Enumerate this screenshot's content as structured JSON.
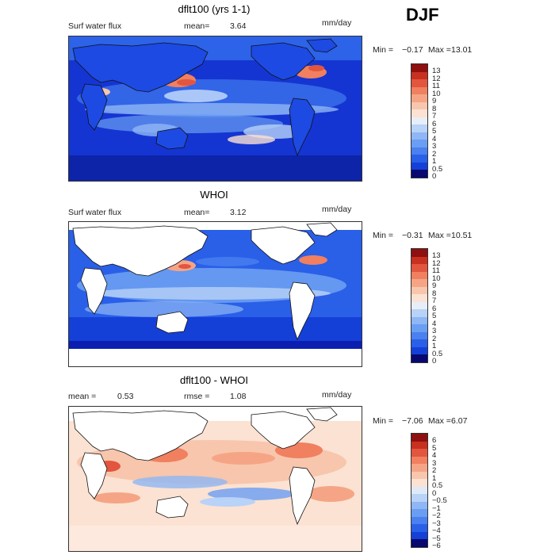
{
  "season": "DJF",
  "colors": {
    "abs_scale": [
      "#080870",
      "#0a1fb0",
      "#1440d8",
      "#2a5fe8",
      "#4a80f0",
      "#6a9ef2",
      "#8fb6f5",
      "#b8d2f8",
      "#e8eef8",
      "#fbe2d2",
      "#f8c6ac",
      "#f5a585",
      "#f0805f",
      "#e2553e",
      "#c8301f",
      "#8e1010"
    ],
    "diff_scale": [
      "#080870",
      "#0a1fb0",
      "#1440d8",
      "#2a5fe8",
      "#4a80f0",
      "#6a9ef2",
      "#8fb6f5",
      "#b8d2f8",
      "#dfe9f8",
      "#fbe2d2",
      "#f8c6ac",
      "#f5a585",
      "#f0805f",
      "#e2553e",
      "#c8301f",
      "#8e1010"
    ]
  },
  "panels": [
    {
      "title": "dflt100 (yrs 1-1)",
      "left_label": "Surf water flux",
      "mean_label": "mean=",
      "mean_value": "3.64",
      "units": "mm/day",
      "min_label": "Min =",
      "min_value": "−0.17",
      "max_label": "Max =",
      "max_value": "13.01",
      "ticks": [
        "13",
        "12",
        "11",
        "10",
        "9",
        "8",
        "7",
        "6",
        "5",
        "4",
        "3",
        "2",
        "1",
        "0.5",
        "0"
      ]
    },
    {
      "title": "WHOI",
      "left_label": "Surf water flux",
      "mean_label": "mean=",
      "mean_value": "3.12",
      "units": "mm/day",
      "min_label": "Min =",
      "min_value": "−0.31",
      "max_label": "Max =",
      "max_value": "10.51",
      "ticks": [
        "13",
        "12",
        "11",
        "10",
        "9",
        "8",
        "7",
        "6",
        "5",
        "4",
        "3",
        "2",
        "1",
        "0.5",
        "0"
      ]
    },
    {
      "title": "dflt100 - WHOI",
      "mean_label": "mean =",
      "mean_value": "0.53",
      "rmse_label": "rmse =",
      "rmse_value": "1.08",
      "units": "mm/day",
      "min_label": "Min =",
      "min_value": "−7.06",
      "max_label": "Max =",
      "max_value": "6.07",
      "ticks": [
        "6",
        "5",
        "4",
        "3",
        "2",
        "1",
        "0.5",
        "0",
        "−0.5",
        "−1",
        "−2",
        "−3",
        "−4",
        "−5",
        "−6"
      ]
    }
  ]
}
